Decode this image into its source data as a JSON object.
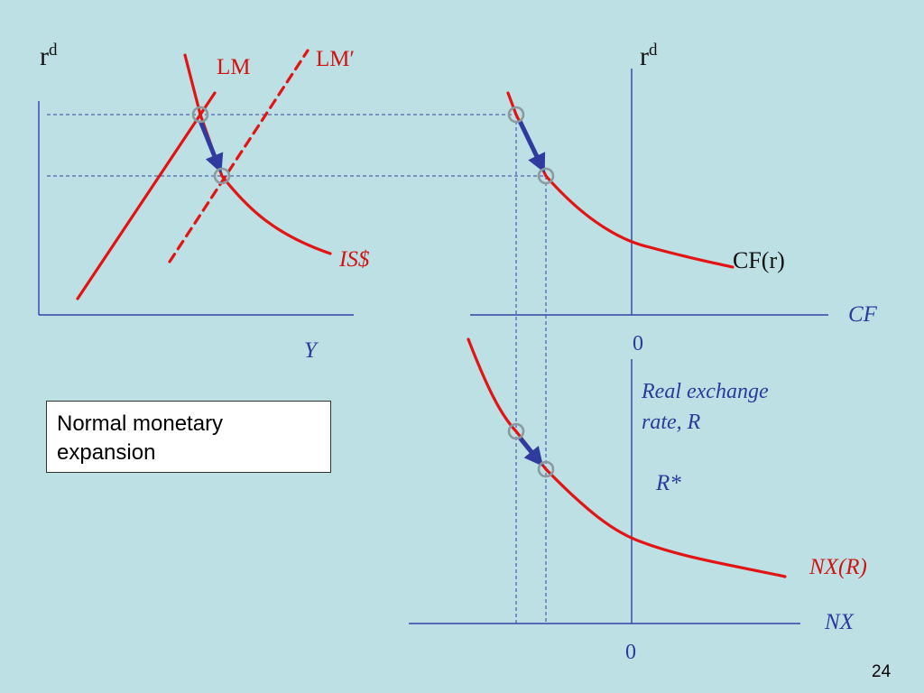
{
  "slide": {
    "page_number": "24",
    "callout_text": "Normal monetary expansion"
  },
  "colors": {
    "background": "#bce0e3",
    "curve": "#e21414",
    "axis": "#3344a6",
    "arrow": "#2f3b9e",
    "marker": "#8a9aa0"
  },
  "panel_income": {
    "y_axis_label": "r",
    "y_axis_superscript": "d",
    "x_axis_label": "Y",
    "curves": {
      "lm": "LM",
      "lm_shifted": "LM′",
      "is": "IS$"
    }
  },
  "panel_capital_flows": {
    "y_axis_label": "r",
    "y_axis_superscript": "d",
    "x_axis_label": "CF",
    "zero_label": "0",
    "curve_label": "CF(r)"
  },
  "panel_net_exports": {
    "y_axis_label": "Real exchange rate, R",
    "y_axis_label_line1": "Real exchange",
    "y_axis_label_line2": "rate, R",
    "r_star_label": "R*",
    "x_axis_label": "NX",
    "zero_label": "0",
    "curve_label": "NX(R)"
  }
}
